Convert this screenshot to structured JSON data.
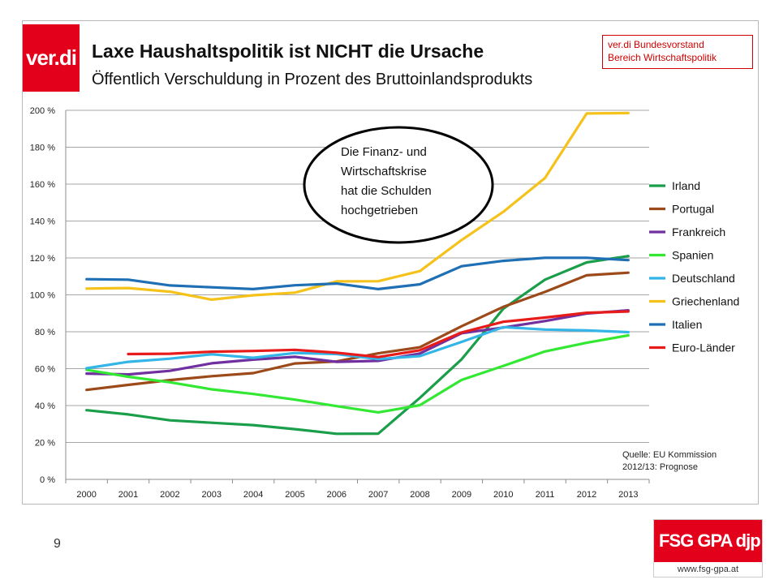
{
  "logo": {
    "text": "ver.di"
  },
  "header": {
    "title": "Laxe Haushaltspolitik ist NICHT die Ursache",
    "subtitle": "Öffentlich Verschuldung  in Prozent des Bruttoinlandsprodukts"
  },
  "org_box": {
    "line1": "ver.di Bundesvorstand",
    "line2": "Bereich Wirtschaftspolitik"
  },
  "annotation": {
    "lines": [
      "Die Finanz- und",
      "Wirtschaftskrise",
      "hat die Schulden",
      "hochgetrieben"
    ]
  },
  "source": {
    "line1": "Quelle: EU Kommission",
    "line2": "2012/13: Prognose"
  },
  "page_number": "9",
  "footer_logo": {
    "text": "FSG GPA djp",
    "url": "www.fsg-gpa.at"
  },
  "chart_data": {
    "type": "line",
    "x": [
      "2000",
      "2001",
      "2002",
      "2003",
      "2004",
      "2005",
      "2006",
      "2007",
      "2008",
      "2009",
      "2010",
      "2011",
      "2012",
      "2013"
    ],
    "ylim": [
      0,
      200
    ],
    "yticks": [
      "0 %",
      "20 %",
      "40 %",
      "60 %",
      "80 %",
      "100 %",
      "120 %",
      "140 %",
      "160 %",
      "180 %",
      "200 %"
    ],
    "grid": true,
    "legend_position": "right",
    "series": [
      {
        "name": "Irland",
        "color": "#1a9e4a",
        "values": [
          37.5,
          35.2,
          32,
          30.7,
          29.4,
          27.2,
          24.7,
          24.8,
          44.2,
          65.1,
          92.5,
          108.2,
          117.6,
          121
        ]
      },
      {
        "name": "Portugal",
        "color": "#9c4a1a",
        "values": [
          48.5,
          51.2,
          53.8,
          55.9,
          57.6,
          62.8,
          63.9,
          68.3,
          71.6,
          83,
          93.5,
          101.6,
          110.6,
          112
        ]
      },
      {
        "name": "Frankreich",
        "color": "#7030a0",
        "values": [
          57.3,
          56.9,
          58.8,
          62.9,
          64.9,
          66.4,
          63.7,
          64.2,
          68.2,
          79.2,
          82.3,
          85.8,
          89.9,
          91.6
        ]
      },
      {
        "name": "Spanien",
        "color": "#33e833",
        "values": [
          59.4,
          55.6,
          52.6,
          48.8,
          46.3,
          43.2,
          39.7,
          36.3,
          40.2,
          53.9,
          61.5,
          69.3,
          74,
          78
        ]
      },
      {
        "name": "Deutschland",
        "color": "#33b5e8",
        "values": [
          60.2,
          63.7,
          65.4,
          67.8,
          65.9,
          68.5,
          67.9,
          65.2,
          66.8,
          74.5,
          82.5,
          81.2,
          80.7,
          79.8
        ]
      },
      {
        "name": "Griechenland",
        "color": "#f5c21b",
        "values": [
          103.4,
          103.7,
          101.7,
          97.4,
          99.8,
          101.2,
          107.3,
          107.4,
          112.9,
          129.7,
          145,
          163.3,
          198.3,
          198.5
        ]
      },
      {
        "name": "Italien",
        "color": "#1f6fb5",
        "values": [
          108.5,
          108.2,
          105.1,
          104.1,
          103.1,
          105.2,
          106.1,
          103.1,
          105.7,
          115.5,
          118.4,
          120.1,
          120.1,
          118.8
        ]
      },
      {
        "name": "Euro-Länder",
        "color": "#e81b1b",
        "values": [
          null,
          67.9,
          68.1,
          69.2,
          69.6,
          70.2,
          68.6,
          66.3,
          70,
          79.6,
          85.4,
          87.7,
          90.3,
          91
        ]
      }
    ]
  }
}
